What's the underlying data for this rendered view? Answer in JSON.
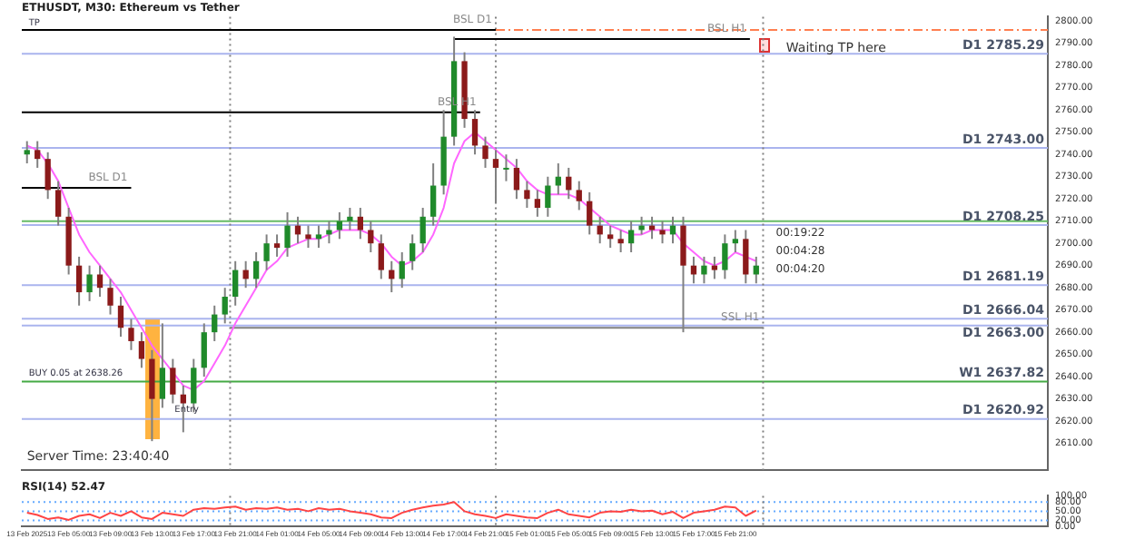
{
  "chart_data": [
    {
      "type": "candlestick",
      "title": "ETHUSDT, M30: Ethereum vs Tether",
      "x": [
        "2025-02-13T01:00",
        "2025-02-13T02:00",
        "2025-02-13T03:00",
        "2025-02-13T04:00",
        "2025-02-13T05:00",
        "2025-02-13T06:00",
        "2025-02-13T07:00",
        "2025-02-13T08:00",
        "2025-02-13T09:00",
        "2025-02-13T10:00",
        "2025-02-13T11:00",
        "2025-02-13T12:00",
        "2025-02-13T13:00",
        "2025-02-13T14:00",
        "2025-02-13T15:00",
        "2025-02-13T16:00",
        "2025-02-13T17:00",
        "2025-02-13T18:00",
        "2025-02-13T19:00",
        "2025-02-13T20:00",
        "2025-02-13T21:00",
        "2025-02-13T22:00",
        "2025-02-13T23:00",
        "2025-02-14T00:00",
        "2025-02-14T01:00",
        "2025-02-14T02:00",
        "2025-02-14T03:00",
        "2025-02-14T04:00",
        "2025-02-14T05:00",
        "2025-02-14T06:00",
        "2025-02-14T07:00",
        "2025-02-14T08:00",
        "2025-02-14T09:00",
        "2025-02-14T10:00",
        "2025-02-14T11:00",
        "2025-02-14T12:00",
        "2025-02-14T13:00",
        "2025-02-14T14:00",
        "2025-02-14T15:00",
        "2025-02-14T16:00",
        "2025-02-14T17:00",
        "2025-02-14T18:00",
        "2025-02-14T19:00",
        "2025-02-14T20:00",
        "2025-02-14T21:00",
        "2025-02-14T22:00",
        "2025-02-14T23:00",
        "2025-02-15T00:00",
        "2025-02-15T01:00",
        "2025-02-15T02:00",
        "2025-02-15T03:00",
        "2025-02-15T04:00",
        "2025-02-15T05:00",
        "2025-02-15T06:00",
        "2025-02-15T07:00",
        "2025-02-15T08:00",
        "2025-02-15T09:00",
        "2025-02-15T10:00",
        "2025-02-15T11:00",
        "2025-02-15T12:00",
        "2025-02-15T13:00",
        "2025-02-15T14:00",
        "2025-02-15T15:00",
        "2025-02-15T16:00",
        "2025-02-15T17:00",
        "2025-02-15T18:00",
        "2025-02-15T19:00",
        "2025-02-15T20:00",
        "2025-02-15T21:00",
        "2025-02-15T22:00",
        "2025-02-15T23:00"
      ],
      "ohlc": [
        [
          2740,
          2746,
          2736,
          2742
        ],
        [
          2742,
          2746,
          2734,
          2738
        ],
        [
          2738,
          2741,
          2720,
          2724
        ],
        [
          2724,
          2728,
          2708,
          2712
        ],
        [
          2712,
          2716,
          2686,
          2690
        ],
        [
          2690,
          2694,
          2672,
          2678
        ],
        [
          2678,
          2690,
          2674,
          2686
        ],
        [
          2686,
          2690,
          2676,
          2680
        ],
        [
          2680,
          2684,
          2668,
          2672
        ],
        [
          2672,
          2676,
          2658,
          2662
        ],
        [
          2662,
          2666,
          2652,
          2656
        ],
        [
          2656,
          2660,
          2644,
          2648
        ],
        [
          2648,
          2652,
          2611,
          2630
        ],
        [
          2630,
          2664,
          2626,
          2644
        ],
        [
          2644,
          2648,
          2628,
          2632
        ],
        [
          2632,
          2636,
          2615,
          2628
        ],
        [
          2628,
          2648,
          2624,
          2644
        ],
        [
          2644,
          2664,
          2640,
          2660
        ],
        [
          2660,
          2672,
          2656,
          2668
        ],
        [
          2668,
          2680,
          2664,
          2676
        ],
        [
          2676,
          2692,
          2672,
          2688
        ],
        [
          2688,
          2692,
          2680,
          2684
        ],
        [
          2684,
          2696,
          2680,
          2692
        ],
        [
          2692,
          2704,
          2688,
          2700
        ],
        [
          2700,
          2704,
          2694,
          2698
        ],
        [
          2698,
          2714,
          2694,
          2708
        ],
        [
          2708,
          2712,
          2700,
          2704
        ],
        [
          2704,
          2708,
          2698,
          2702
        ],
        [
          2702,
          2708,
          2698,
          2704
        ],
        [
          2704,
          2710,
          2700,
          2706
        ],
        [
          2706,
          2714,
          2702,
          2710
        ],
        [
          2710,
          2716,
          2706,
          2712
        ],
        [
          2712,
          2716,
          2702,
          2706
        ],
        [
          2706,
          2710,
          2696,
          2700
        ],
        [
          2700,
          2704,
          2684,
          2688
        ],
        [
          2688,
          2692,
          2678,
          2684
        ],
        [
          2684,
          2696,
          2680,
          2692
        ],
        [
          2692,
          2704,
          2688,
          2700
        ],
        [
          2700,
          2716,
          2696,
          2712
        ],
        [
          2712,
          2736,
          2708,
          2726
        ],
        [
          2726,
          2760,
          2722,
          2748
        ],
        [
          2748,
          2793,
          2744,
          2782
        ],
        [
          2782,
          2786,
          2752,
          2756
        ],
        [
          2756,
          2760,
          2740,
          2744
        ],
        [
          2744,
          2748,
          2734,
          2738
        ],
        [
          2738,
          2742,
          2718,
          2734
        ],
        [
          2734,
          2740,
          2728,
          2734
        ],
        [
          2734,
          2738,
          2720,
          2724
        ],
        [
          2724,
          2728,
          2716,
          2720
        ],
        [
          2720,
          2724,
          2712,
          2716
        ],
        [
          2716,
          2730,
          2712,
          2726
        ],
        [
          2726,
          2736,
          2722,
          2730
        ],
        [
          2730,
          2734,
          2720,
          2724
        ],
        [
          2724,
          2728,
          2715,
          2719
        ],
        [
          2719,
          2723,
          2704,
          2708
        ],
        [
          2708,
          2712,
          2700,
          2704
        ],
        [
          2704,
          2708,
          2698,
          2702
        ],
        [
          2702,
          2706,
          2696,
          2700
        ],
        [
          2700,
          2710,
          2696,
          2706
        ],
        [
          2706,
          2712,
          2704,
          2708
        ],
        [
          2708,
          2712,
          2702,
          2706
        ],
        [
          2706,
          2710,
          2700,
          2704
        ],
        [
          2704,
          2712,
          2700,
          2708
        ],
        [
          2708,
          2712,
          2660,
          2690
        ],
        [
          2690,
          2694,
          2682,
          2686
        ],
        [
          2686,
          2694,
          2682,
          2690
        ],
        [
          2690,
          2694,
          2684,
          2688
        ],
        [
          2688,
          2704,
          2684,
          2700
        ],
        [
          2700,
          2706,
          2696,
          2702
        ],
        [
          2702,
          2706,
          2682,
          2686
        ],
        [
          2686,
          2694,
          2682,
          2690
        ]
      ],
      "series": [
        {
          "type": "line",
          "color": "#ff66ff",
          "values": [
            2744,
            2742,
            2736,
            2728,
            2716,
            2704,
            2696,
            2690,
            2684,
            2678,
            2670,
            2662,
            2654,
            2648,
            2642,
            2636,
            2634,
            2638,
            2646,
            2654,
            2664,
            2672,
            2680,
            2688,
            2692,
            2698,
            2700,
            2702,
            2702,
            2704,
            2706,
            2706,
            2706,
            2704,
            2700,
            2694,
            2690,
            2692,
            2696,
            2704,
            2716,
            2736,
            2746,
            2750,
            2746,
            2742,
            2738,
            2734,
            2728,
            2724,
            2722,
            2722,
            2722,
            2720,
            2716,
            2712,
            2708,
            2706,
            2704,
            2704,
            2706,
            2706,
            2706,
            2700,
            2696,
            2692,
            2690,
            2692,
            2696,
            2694,
            2692
          ]
        },
        {
          "type": "line",
          "name": "BSL D1",
          "color": "#000000",
          "x": [
            "2025-02-13T00:30",
            "2025-02-14T22:00"
          ],
          "values": [
            2796,
            2796
          ]
        },
        {
          "type": "line",
          "name": "BSL H1",
          "color": "#000000",
          "x": [
            "2025-02-14T18:00",
            "2025-02-15T22:24"
          ],
          "values": [
            2792,
            2792
          ]
        },
        {
          "type": "line",
          "name": "BSL H1",
          "color": "#000000",
          "x": [
            "2025-02-13T00:30",
            "2025-02-14T20:30"
          ],
          "values": [
            2759,
            2759
          ]
        },
        {
          "type": "line",
          "name": "BSL D1",
          "color": "#000000",
          "x": [
            "2025-02-13T00:30",
            "2025-02-13T11:00"
          ],
          "values": [
            2725,
            2725
          ]
        },
        {
          "type": "line",
          "name": "SSL H1",
          "color": "#808080",
          "x": [
            "2025-02-13T20:30",
            "2025-02-15T23:40"
          ],
          "values": [
            2662,
            2662
          ]
        },
        {
          "type": "line",
          "color": "#ff7f50",
          "line_style": "dashed",
          "x": [
            "2025-02-14T22:00",
            "2025-02-17T03:00"
          ],
          "values": [
            2796,
            2796
          ]
        }
      ],
      "ref_lines": [
        {
          "axis": "y",
          "value": 2785.29,
          "label": "D1 2785.29",
          "color": "#aab4ee"
        },
        {
          "axis": "y",
          "value": 2743.0,
          "label": "D1 2743.00",
          "color": "#aab4ee"
        },
        {
          "axis": "y",
          "value": 2710,
          "label": null,
          "color": "#66bb66"
        },
        {
          "axis": "y",
          "value": 2708.25,
          "label": "D1 2708.25",
          "color": "#aab4ee"
        },
        {
          "axis": "y",
          "value": 2681.19,
          "label": "D1 2681.19",
          "color": "#aab4ee"
        },
        {
          "axis": "y",
          "value": 2666.04,
          "label": "D1 2666.04",
          "color": "#aab4ee"
        },
        {
          "axis": "y",
          "value": 2663.0,
          "label": "D1 2663.00",
          "color": "#aab4ee"
        },
        {
          "axis": "y",
          "value": 2637.82,
          "label": "W1 2637.82",
          "color": "#44aa44"
        },
        {
          "axis": "y",
          "value": 2620.92,
          "label": "D1 2620.92",
          "color": "#aab4ee"
        },
        {
          "axis": "x",
          "value": "2025-02-13T20:30",
          "label": null,
          "color": "#808080",
          "line_style": "dotted"
        },
        {
          "axis": "x",
          "value": "2025-02-14T22:00",
          "label": null,
          "color": "#808080",
          "line_style": "dotted"
        },
        {
          "axis": "x",
          "value": "2025-02-15T23:40",
          "label": null,
          "color": "#808080",
          "line_style": "dotted"
        }
      ],
      "annotations": [
        {
          "text": "TP",
          "x": "2025-02-13T01:00",
          "y": 2796
        },
        "Waiting TP here",
        {
          "text": "BUY 0.05 at 2638.26",
          "x": "2025-02-13T01:00",
          "y": 2638.26
        },
        {
          "text": "Entry",
          "x": "2025-02-13T15:00",
          "y": 2622
        },
        "00:19:22",
        "00:04:28",
        "00:04:20",
        "Server Time: 23:40:40"
      ],
      "xlim": [
        "2025-02-13T00:30",
        "2025-02-17T03:00"
      ],
      "ylim": [
        2598,
        2802
      ],
      "yticks": [
        {
          "value": 2610,
          "label": "2610.00"
        },
        {
          "value": 2620,
          "label": "2620.00"
        },
        {
          "value": 2630,
          "label": "2630.00"
        },
        {
          "value": 2640,
          "label": "2640.00"
        },
        {
          "value": 2650,
          "label": "2650.00"
        },
        {
          "value": 2660,
          "label": "2660.00"
        },
        {
          "value": 2670,
          "label": "2670.00"
        },
        {
          "value": 2680,
          "label": "2680.00"
        },
        {
          "value": 2690,
          "label": "2690.00"
        },
        {
          "value": 2700,
          "label": "2700.00"
        },
        {
          "value": 2710,
          "label": "2710.00"
        },
        {
          "value": 2720,
          "label": "2720.00"
        },
        {
          "value": 2730,
          "label": "2730.00"
        },
        {
          "value": 2740,
          "label": "2740.00"
        },
        {
          "value": 2750,
          "label": "2750.00"
        },
        {
          "value": 2760,
          "label": "2760.00"
        },
        {
          "value": 2770,
          "label": "2770.00"
        },
        {
          "value": 2780,
          "label": "2780.00"
        },
        {
          "value": 2790,
          "label": "2790.00"
        },
        {
          "value": 2800,
          "label": "2800.00"
        }
      ],
      "tick_labels": "y",
      "grid": false,
      "legend": false,
      "marker": "none"
    },
    {
      "type": "line",
      "title": "RSI(14) 52.47",
      "x": [
        "2025-02-13T01:00",
        "2025-02-13T02:00",
        "2025-02-13T03:00",
        "2025-02-13T04:00",
        "2025-02-13T05:00",
        "2025-02-13T06:00",
        "2025-02-13T07:00",
        "2025-02-13T08:00",
        "2025-02-13T09:00",
        "2025-02-13T10:00",
        "2025-02-13T11:00",
        "2025-02-13T12:00",
        "2025-02-13T13:00",
        "2025-02-13T14:00",
        "2025-02-13T15:00",
        "2025-02-13T16:00",
        "2025-02-13T17:00",
        "2025-02-13T18:00",
        "2025-02-13T19:00",
        "2025-02-13T20:00",
        "2025-02-13T21:00",
        "2025-02-13T22:00",
        "2025-02-13T23:00",
        "2025-02-14T00:00",
        "2025-02-14T01:00",
        "2025-02-14T02:00",
        "2025-02-14T03:00",
        "2025-02-14T04:00",
        "2025-02-14T05:00",
        "2025-02-14T06:00",
        "2025-02-14T07:00",
        "2025-02-14T08:00",
        "2025-02-14T09:00",
        "2025-02-14T10:00",
        "2025-02-14T11:00",
        "2025-02-14T12:00",
        "2025-02-14T13:00",
        "2025-02-14T14:00",
        "2025-02-14T15:00",
        "2025-02-14T16:00",
        "2025-02-14T17:00",
        "2025-02-14T18:00",
        "2025-02-14T19:00",
        "2025-02-14T20:00",
        "2025-02-14T21:00",
        "2025-02-14T22:00",
        "2025-02-14T23:00",
        "2025-02-15T00:00",
        "2025-02-15T01:00",
        "2025-02-15T02:00",
        "2025-02-15T03:00",
        "2025-02-15T04:00",
        "2025-02-15T05:00",
        "2025-02-15T06:00",
        "2025-02-15T07:00",
        "2025-02-15T08:00",
        "2025-02-15T09:00",
        "2025-02-15T10:00",
        "2025-02-15T11:00",
        "2025-02-15T12:00",
        "2025-02-15T13:00",
        "2025-02-15T14:00",
        "2025-02-15T15:00",
        "2025-02-15T16:00",
        "2025-02-15T17:00",
        "2025-02-15T18:00",
        "2025-02-15T19:00",
        "2025-02-15T20:00",
        "2025-02-15T21:00",
        "2025-02-15T22:00",
        "2025-02-15T23:00"
      ],
      "series": [
        {
          "type": "line",
          "color": "#ff4444",
          "values": [
            45,
            38,
            25,
            30,
            22,
            35,
            40,
            28,
            45,
            35,
            50,
            30,
            25,
            45,
            40,
            35,
            55,
            60,
            58,
            62,
            65,
            55,
            60,
            58,
            62,
            55,
            58,
            50,
            60,
            55,
            58,
            50,
            45,
            40,
            30,
            28,
            45,
            55,
            62,
            68,
            72,
            80,
            50,
            40,
            35,
            28,
            40,
            35,
            30,
            28,
            45,
            55,
            40,
            35,
            30,
            45,
            50,
            48,
            55,
            50,
            52,
            40,
            48,
            28,
            45,
            50,
            55,
            65,
            62,
            35,
            52
          ]
        }
      ],
      "ref_lines": [
        {
          "axis": "y",
          "value": 80,
          "label": null,
          "color": "#66aaff",
          "line_style": "dotted"
        },
        {
          "axis": "y",
          "value": 50,
          "label": null,
          "color": "#66aaff",
          "line_style": "dotted"
        },
        {
          "axis": "y",
          "value": 20,
          "label": null,
          "color": "#66aaff",
          "line_style": "dotted"
        },
        {
          "axis": "x",
          "value": "2025-02-13T20:30",
          "label": null,
          "color": "#808080",
          "line_style": "dotted"
        },
        {
          "axis": "x",
          "value": "2025-02-14T22:00",
          "label": null,
          "color": "#808080",
          "line_style": "dotted"
        },
        {
          "axis": "x",
          "value": "2025-02-15T23:40",
          "label": null,
          "color": "#808080",
          "line_style": "dotted"
        }
      ],
      "xlim": [
        "2025-02-13T00:30",
        "2025-02-17T03:00"
      ],
      "ylim": [
        0,
        100
      ],
      "xticks": [
        {
          "value": "2025-02-13T01:00",
          "label": "13 Feb 2025"
        },
        {
          "value": "2025-02-13T05:00",
          "label": "13 Feb 05:00"
        },
        {
          "value": "2025-02-13T09:00",
          "label": "13 Feb 09:00"
        },
        {
          "value": "2025-02-13T13:00",
          "label": "13 Feb 13:00"
        },
        {
          "value": "2025-02-13T17:00",
          "label": "13 Feb 17:00"
        },
        {
          "value": "2025-02-13T21:00",
          "label": "13 Feb 21:00"
        },
        {
          "value": "2025-02-14T01:00",
          "label": "14 Feb 01:00"
        },
        {
          "value": "2025-02-14T05:00",
          "label": "14 Feb 05:00"
        },
        {
          "value": "2025-02-14T09:00",
          "label": "14 Feb 09:00"
        },
        {
          "value": "2025-02-14T13:00",
          "label": "14 Feb 13:00"
        },
        {
          "value": "2025-02-14T17:00",
          "label": "14 Feb 17:00"
        },
        {
          "value": "2025-02-14T21:00",
          "label": "14 Feb 21:00"
        },
        {
          "value": "2025-02-15T01:00",
          "label": "15 Feb 01:00"
        },
        {
          "value": "2025-02-15T05:00",
          "label": "15 Feb 05:00"
        },
        {
          "value": "2025-02-15T09:00",
          "label": "15 Feb 09:00"
        },
        {
          "value": "2025-02-15T13:00",
          "label": "15 Feb 13:00"
        },
        {
          "value": "2025-02-15T17:00",
          "label": "15 Feb 17:00"
        },
        {
          "value": "2025-02-15T21:00",
          "label": "15 Feb 21:00"
        }
      ],
      "yticks": [
        {
          "value": 0,
          "label": "0.00"
        },
        {
          "value": 20,
          "label": "20.00"
        },
        {
          "value": 50,
          "label": "50.00"
        },
        {
          "value": 80,
          "label": "80.00"
        },
        {
          "value": 100,
          "label": "100.00"
        }
      ],
      "grid": false,
      "legend": false,
      "marker": "none"
    }
  ]
}
